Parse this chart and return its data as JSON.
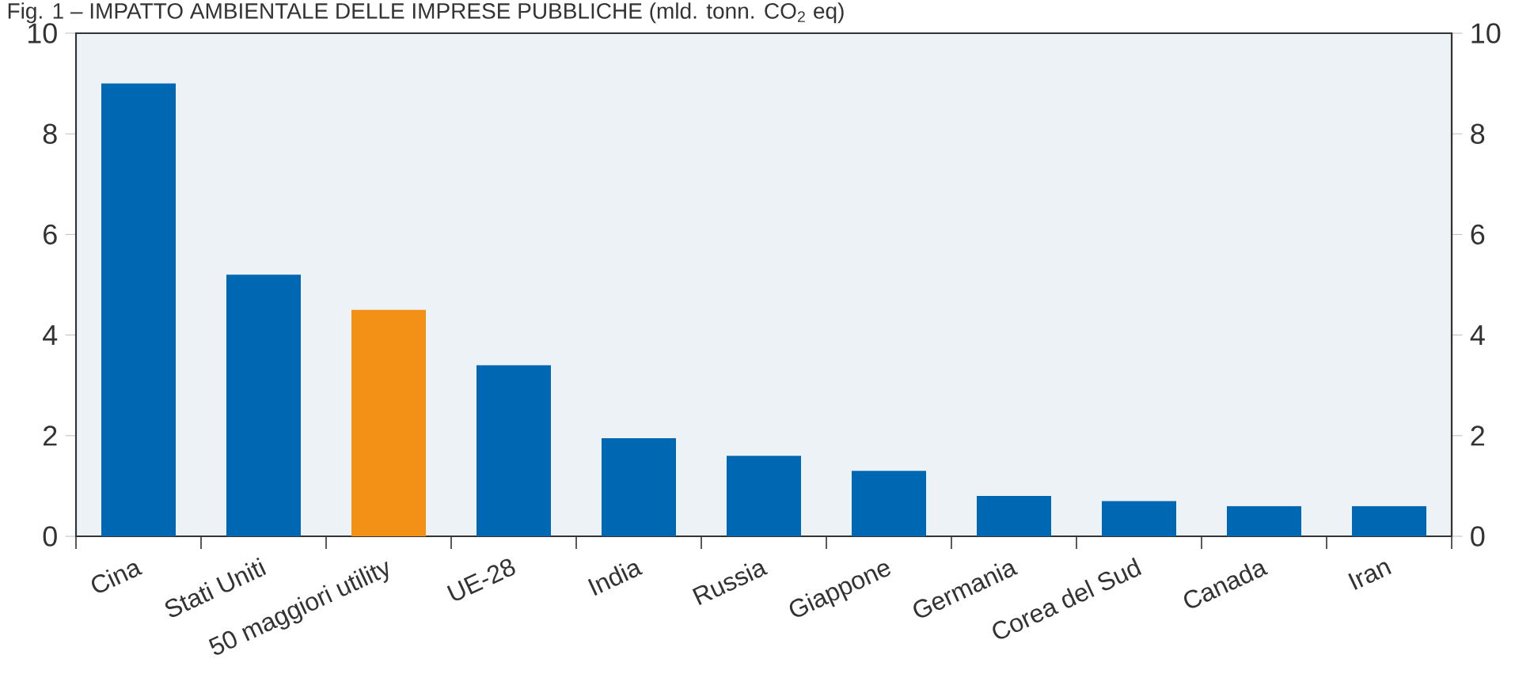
{
  "chart_data": {
    "type": "bar",
    "title": "Fig. 1 – IMPATTO AMBIENTALE DELLE IMPRESE PUBBLICHE (mld. tonn. CO$_{2}$ eq)",
    "categories": [
      "Cina",
      "Stati Uniti",
      "50 maggiori utility",
      "UE-28",
      "India",
      "Russia",
      "Giappone",
      "Germania",
      "Corea del Sud",
      "Canada",
      "Iran"
    ],
    "values": [
      9.0,
      5.2,
      4.5,
      3.4,
      1.95,
      1.6,
      1.3,
      0.8,
      0.7,
      0.6,
      0.6
    ],
    "colors": [
      "#0068b2",
      "#0068b2",
      "#f39016",
      "#0068b2",
      "#0068b2",
      "#0068b2",
      "#0068b2",
      "#0068b2",
      "#0068b2",
      "#0068b2",
      "#0068b2"
    ],
    "ylim": [
      0,
      10
    ],
    "yticks": [
      0,
      2,
      4,
      6,
      8,
      10
    ],
    "y2lim": [
      0,
      10
    ],
    "y2ticks": [
      0,
      2,
      4,
      6,
      8,
      10
    ],
    "grid": false
  }
}
